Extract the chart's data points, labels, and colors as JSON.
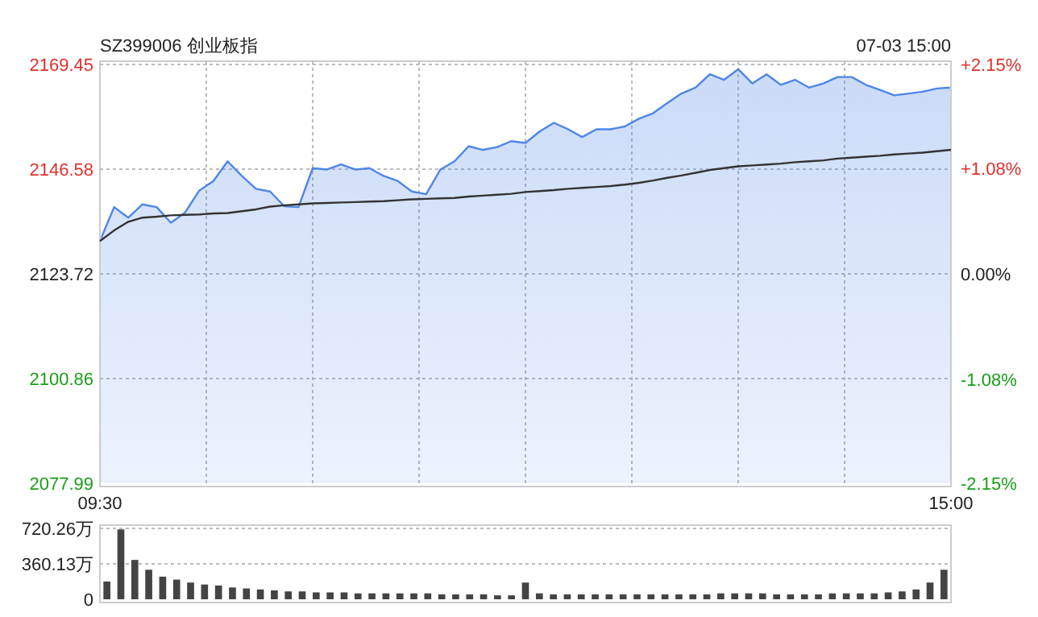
{
  "chart_data": [
    {
      "type": "line",
      "title": "SZ399006 创业板指",
      "annotations": [
        "07-03 15:00"
      ],
      "categories": [
        "09:30",
        null,
        null,
        null,
        null,
        null,
        null,
        null,
        null,
        null,
        null,
        null,
        null,
        null,
        null,
        null,
        null,
        null,
        null,
        null,
        null,
        null,
        null,
        null,
        null,
        null,
        null,
        null,
        null,
        null,
        null,
        null,
        null,
        null,
        null,
        null,
        null,
        null,
        null,
        null,
        null,
        null,
        null,
        null,
        null,
        null,
        null,
        null,
        null,
        null,
        null,
        null,
        null,
        null,
        null,
        null,
        null,
        null,
        null,
        null,
        "15:00"
      ],
      "series": [
        {
          "type": "area",
          "color": "#4e86e8",
          "values": [
            2130.9,
            2138.3,
            2136.0,
            2138.9,
            2138.3,
            2134.9,
            2137.1,
            2141.9,
            2144.0,
            2148.3,
            2145.1,
            2142.3,
            2141.7,
            2138.5,
            2138.3,
            2146.8,
            2146.5,
            2147.6,
            2146.5,
            2146.8,
            2145.1,
            2144.0,
            2141.7,
            2141.1,
            2146.5,
            2148.3,
            2151.6,
            2150.8,
            2151.4,
            2152.7,
            2152.3,
            2154.8,
            2156.7,
            2155.3,
            2153.6,
            2155.3,
            2155.3,
            2155.9,
            2157.6,
            2158.8,
            2161.0,
            2163.1,
            2164.4,
            2167.3,
            2166.1,
            2168.4,
            2165.3,
            2167.3,
            2165.0,
            2166.1,
            2164.4,
            2165.3,
            2166.7,
            2166.7,
            2165.0,
            2163.9,
            2162.7,
            2163.1,
            2163.5,
            2164.2,
            2164.4
          ]
        },
        {
          "type": "line",
          "color": "#333333",
          "values": [
            2130.9,
            2133.2,
            2135.1,
            2136.0,
            2136.2,
            2136.5,
            2136.6,
            2136.7,
            2136.9,
            2137.0,
            2137.4,
            2137.8,
            2138.4,
            2138.7,
            2138.9,
            2139.1,
            2139.2,
            2139.3,
            2139.4,
            2139.5,
            2139.6,
            2139.8,
            2140.0,
            2140.1,
            2140.2,
            2140.3,
            2140.6,
            2140.8,
            2141.0,
            2141.2,
            2141.6,
            2141.8,
            2142.0,
            2142.3,
            2142.5,
            2142.7,
            2142.9,
            2143.2,
            2143.6,
            2144.1,
            2144.7,
            2145.2,
            2145.8,
            2146.4,
            2146.8,
            2147.2,
            2147.4,
            2147.6,
            2147.8,
            2148.1,
            2148.3,
            2148.5,
            2148.9,
            2149.1,
            2149.3,
            2149.5,
            2149.8,
            2150.0,
            2150.2,
            2150.5,
            2150.8
          ]
        }
      ],
      "ylim": [
        2077.99,
        2169.45
      ],
      "yticks": [
        2077.99,
        2100.86,
        2123.72,
        2146.58,
        2169.45
      ],
      "y2lim": [
        -2.15,
        2.15
      ],
      "y2ticks": [
        {
          "value": -2.15,
          "label": "-2.15%"
        },
        {
          "value": -1.08,
          "label": "-1.08%"
        },
        {
          "value": 0,
          "label": "0.00%"
        },
        {
          "value": 1.08,
          "label": "+1.08%"
        },
        {
          "value": 2.15,
          "label": "+2.15%"
        }
      ],
      "grid": true
    },
    {
      "type": "bar",
      "color": "#444444",
      "tick_labels": "y",
      "grid": "y",
      "categories": [
        null,
        null,
        null,
        null,
        null,
        null,
        null,
        null,
        null,
        null,
        null,
        null,
        null,
        null,
        null,
        null,
        null,
        null,
        null,
        null,
        null,
        null,
        null,
        null,
        null,
        null,
        null,
        null,
        null,
        null,
        null,
        null,
        null,
        null,
        null,
        null,
        null,
        null,
        null,
        null,
        null,
        null,
        null,
        null,
        null,
        null,
        null,
        null,
        null,
        null,
        null,
        null,
        null,
        null,
        null,
        null,
        null,
        null,
        null,
        null,
        null
      ],
      "values": [
        180,
        710,
        400,
        300,
        230,
        200,
        170,
        150,
        140,
        120,
        110,
        100,
        90,
        80,
        80,
        70,
        70,
        70,
        60,
        60,
        60,
        60,
        60,
        60,
        50,
        50,
        50,
        50,
        40,
        40,
        170,
        60,
        50,
        50,
        50,
        50,
        50,
        50,
        50,
        50,
        50,
        50,
        50,
        50,
        60,
        60,
        60,
        60,
        50,
        50,
        50,
        50,
        60,
        60,
        60,
        60,
        70,
        80,
        100,
        170,
        300
      ],
      "ylim": [
        0,
        720.26
      ],
      "yticks": [
        0,
        {
          "value": 360.13,
          "label": "360.13万"
        },
        {
          "value": 720.26,
          "label": "720.26万"
        }
      ]
    }
  ]
}
